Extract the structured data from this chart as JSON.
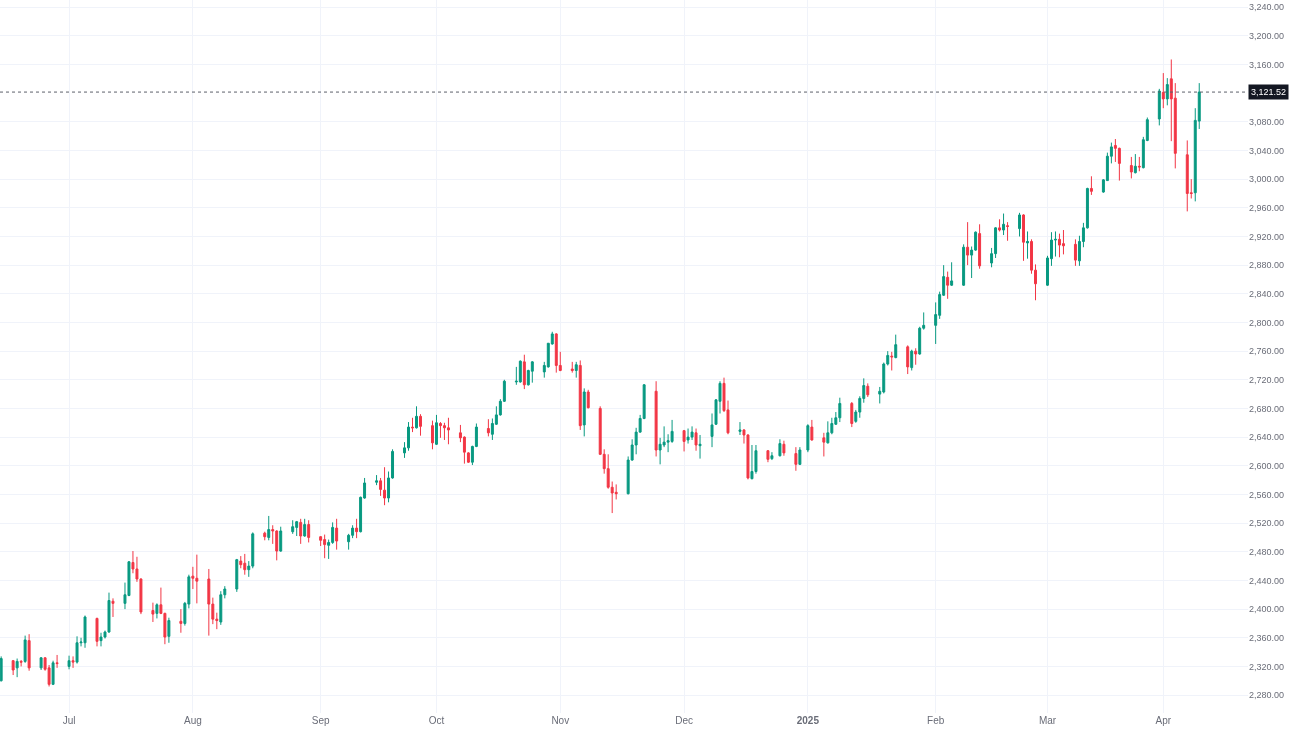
{
  "chart_data": {
    "type": "candlestick",
    "x": [
      "2024-06-14",
      "2024-06-17",
      "2024-06-18",
      "2024-06-19",
      "2024-06-20",
      "2024-06-21",
      "2024-06-24",
      "2024-06-25",
      "2024-06-26",
      "2024-06-27",
      "2024-06-28",
      "2024-07-01",
      "2024-07-02",
      "2024-07-03",
      "2024-07-04",
      "2024-07-05",
      "2024-07-08",
      "2024-07-09",
      "2024-07-10",
      "2024-07-11",
      "2024-07-12",
      "2024-07-15",
      "2024-07-16",
      "2024-07-17",
      "2024-07-18",
      "2024-07-19",
      "2024-07-22",
      "2024-07-23",
      "2024-07-24",
      "2024-07-25",
      "2024-07-26",
      "2024-07-29",
      "2024-07-30",
      "2024-07-31",
      "2024-08-01",
      "2024-08-02",
      "2024-08-05",
      "2024-08-06",
      "2024-08-07",
      "2024-08-08",
      "2024-08-09",
      "2024-08-12",
      "2024-08-13",
      "2024-08-14",
      "2024-08-15",
      "2024-08-16",
      "2024-08-19",
      "2024-08-20",
      "2024-08-21",
      "2024-08-22",
      "2024-08-23",
      "2024-08-26",
      "2024-08-27",
      "2024-08-28",
      "2024-08-29",
      "2024-08-30",
      "2024-09-02",
      "2024-09-03",
      "2024-09-04",
      "2024-09-05",
      "2024-09-06",
      "2024-09-09",
      "2024-09-10",
      "2024-09-11",
      "2024-09-12",
      "2024-09-13",
      "2024-09-16",
      "2024-09-17",
      "2024-09-18",
      "2024-09-19",
      "2024-09-20",
      "2024-09-23",
      "2024-09-24",
      "2024-09-25",
      "2024-09-26",
      "2024-09-27",
      "2024-09-30",
      "2024-10-01",
      "2024-10-02",
      "2024-10-03",
      "2024-10-04",
      "2024-10-07",
      "2024-10-08",
      "2024-10-09",
      "2024-10-10",
      "2024-10-11",
      "2024-10-14",
      "2024-10-15",
      "2024-10-16",
      "2024-10-17",
      "2024-10-18",
      "2024-10-21",
      "2024-10-22",
      "2024-10-23",
      "2024-10-24",
      "2024-10-25",
      "2024-10-28",
      "2024-10-29",
      "2024-10-30",
      "2024-10-31",
      "2024-11-01",
      "2024-11-04",
      "2024-11-05",
      "2024-11-06",
      "2024-11-07",
      "2024-11-08",
      "2024-11-11",
      "2024-11-12",
      "2024-11-13",
      "2024-11-14",
      "2024-11-15",
      "2024-11-18",
      "2024-11-19",
      "2024-11-20",
      "2024-11-21",
      "2024-11-22",
      "2024-11-25",
      "2024-11-26",
      "2024-11-27",
      "2024-11-28",
      "2024-11-29",
      "2024-12-02",
      "2024-12-03",
      "2024-12-04",
      "2024-12-05",
      "2024-12-06",
      "2024-12-09",
      "2024-12-10",
      "2024-12-11",
      "2024-12-12",
      "2024-12-13",
      "2024-12-16",
      "2024-12-17",
      "2024-12-18",
      "2024-12-19",
      "2024-12-20",
      "2024-12-23",
      "2024-12-24",
      "2024-12-26",
      "2024-12-27",
      "2024-12-30",
      "2024-12-31",
      "2025-01-02",
      "2025-01-03",
      "2025-01-06",
      "2025-01-07",
      "2025-01-08",
      "2025-01-09",
      "2025-01-10",
      "2025-01-13",
      "2025-01-14",
      "2025-01-15",
      "2025-01-16",
      "2025-01-17",
      "2025-01-20",
      "2025-01-21",
      "2025-01-22",
      "2025-01-23",
      "2025-01-24",
      "2025-01-27",
      "2025-01-28",
      "2025-01-29",
      "2025-01-30",
      "2025-01-31",
      "2025-02-03",
      "2025-02-04",
      "2025-02-05",
      "2025-02-06",
      "2025-02-07",
      "2025-02-10",
      "2025-02-11",
      "2025-02-12",
      "2025-02-13",
      "2025-02-14",
      "2025-02-17",
      "2025-02-18",
      "2025-02-19",
      "2025-02-20",
      "2025-02-21",
      "2025-02-24",
      "2025-02-25",
      "2025-02-26",
      "2025-02-27",
      "2025-02-28",
      "2025-03-03",
      "2025-03-04",
      "2025-03-05",
      "2025-03-06",
      "2025-03-07",
      "2025-03-10",
      "2025-03-11",
      "2025-03-12",
      "2025-03-13",
      "2025-03-14",
      "2025-03-17",
      "2025-03-18",
      "2025-03-19",
      "2025-03-20",
      "2025-03-21",
      "2025-03-24",
      "2025-03-25",
      "2025-03-26",
      "2025-03-27",
      "2025-03-28",
      "2025-03-31",
      "2025-04-01",
      "2025-04-02",
      "2025-04-03",
      "2025-04-04",
      "2025-04-07",
      "2025-04-08",
      "2025-04-09",
      "2025-04-10"
    ],
    "ohlc": [
      [
        2300,
        2334,
        2299,
        2331
      ],
      [
        2328,
        2329,
        2308,
        2315
      ],
      [
        2318,
        2331,
        2305,
        2327
      ],
      [
        2327,
        2329,
        2320,
        2326
      ],
      [
        2327,
        2363,
        2325,
        2357
      ],
      [
        2356,
        2365,
        2314,
        2318
      ],
      [
        2318,
        2333,
        2315,
        2332
      ],
      [
        2332,
        2333,
        2314,
        2316
      ],
      [
        2318,
        2322,
        2292,
        2295
      ],
      [
        2295,
        2328,
        2294,
        2325
      ],
      [
        2325,
        2336,
        2318,
        2324
      ],
      [
        2320,
        2335,
        2316,
        2328
      ],
      [
        2328,
        2334,
        2318,
        2326
      ],
      [
        2326,
        2362,
        2324,
        2353
      ],
      [
        2353,
        2360,
        2348,
        2354
      ],
      [
        2353,
        2391,
        2346,
        2389
      ],
      [
        2387,
        2388,
        2348,
        2355
      ],
      [
        2356,
        2367,
        2348,
        2361
      ],
      [
        2361,
        2370,
        2359,
        2368
      ],
      [
        2368,
        2423,
        2367,
        2412
      ],
      [
        2411,
        2415,
        2389,
        2408
      ],
      [
        2408,
        2437,
        2400,
        2420
      ],
      [
        2419,
        2467,
        2418,
        2466
      ],
      [
        2465,
        2481,
        2450,
        2456
      ],
      [
        2456,
        2473,
        2438,
        2442
      ],
      [
        2442,
        2443,
        2393,
        2396
      ],
      [
        2398,
        2409,
        2382,
        2393
      ],
      [
        2394,
        2408,
        2387,
        2406
      ],
      [
        2406,
        2430,
        2393,
        2394
      ],
      [
        2394,
        2395,
        2351,
        2361
      ],
      [
        2362,
        2388,
        2353,
        2384
      ],
      [
        2383,
        2400,
        2367,
        2380
      ],
      [
        2380,
        2410,
        2377,
        2408
      ],
      [
        2407,
        2448,
        2401,
        2445
      ],
      [
        2446,
        2459,
        2428,
        2443
      ],
      [
        2443,
        2476,
        2408,
        2439
      ],
      [
        2442,
        2456,
        2363,
        2407
      ],
      [
        2407,
        2416,
        2379,
        2386
      ],
      [
        2386,
        2395,
        2372,
        2384
      ],
      [
        2382,
        2425,
        2378,
        2420
      ],
      [
        2420,
        2432,
        2415,
        2428
      ],
      [
        2428,
        2470,
        2424,
        2469
      ],
      [
        2467,
        2474,
        2457,
        2462
      ],
      [
        2464,
        2477,
        2448,
        2455
      ],
      [
        2455,
        2467,
        2445,
        2460
      ],
      [
        2460,
        2507,
        2457,
        2505
      ],
      [
        2506,
        2508,
        2496,
        2501
      ],
      [
        2500,
        2530,
        2496,
        2511
      ],
      [
        2511,
        2517,
        2491,
        2509
      ],
      [
        2509,
        2510,
        2468,
        2481
      ],
      [
        2481,
        2515,
        2480,
        2509
      ],
      [
        2508,
        2524,
        2505,
        2515
      ],
      [
        2514,
        2523,
        2502,
        2522
      ],
      [
        2521,
        2526,
        2491,
        2502
      ],
      [
        2502,
        2526,
        2501,
        2518
      ],
      [
        2518,
        2524,
        2493,
        2500
      ],
      [
        2501,
        2502,
        2488,
        2496
      ],
      [
        2497,
        2504,
        2471,
        2490
      ],
      [
        2489,
        2497,
        2470,
        2493
      ],
      [
        2493,
        2521,
        2491,
        2514
      ],
      [
        2513,
        2526,
        2483,
        2495
      ],
      [
        2494,
        2505,
        2483,
        2503
      ],
      [
        2503,
        2517,
        2499,
        2513
      ],
      [
        2513,
        2526,
        2499,
        2508
      ],
      [
        2508,
        2557,
        2507,
        2556
      ],
      [
        2555,
        2583,
        2554,
        2576
      ],
      [
        2577,
        2587,
        2573,
        2579
      ],
      [
        2579,
        2583,
        2558,
        2567
      ],
      [
        2566,
        2598,
        2545,
        2555
      ],
      [
        2555,
        2592,
        2549,
        2583
      ],
      [
        2583,
        2623,
        2582,
        2620
      ],
      [
        2618,
        2633,
        2611,
        2625
      ],
      [
        2625,
        2661,
        2621,
        2654
      ],
      [
        2654,
        2667,
        2647,
        2653
      ],
      [
        2653,
        2683,
        2652,
        2669
      ],
      [
        2669,
        2672,
        2642,
        2655
      ],
      [
        2656,
        2663,
        2623,
        2632
      ],
      [
        2630,
        2671,
        2629,
        2660
      ],
      [
        2659,
        2661,
        2639,
        2656
      ],
      [
        2656,
        2660,
        2636,
        2653
      ],
      [
        2653,
        2667,
        2630,
        2650
      ],
      [
        2646,
        2657,
        2633,
        2639
      ],
      [
        2640,
        2641,
        2603,
        2619
      ],
      [
        2618,
        2619,
        2604,
        2605
      ],
      [
        2605,
        2628,
        2601,
        2627
      ],
      [
        2627,
        2659,
        2626,
        2654
      ],
      [
        2652,
        2665,
        2641,
        2646
      ],
      [
        2644,
        2666,
        2636,
        2659
      ],
      [
        2658,
        2683,
        2657,
        2671
      ],
      [
        2671,
        2693,
        2670,
        2690
      ],
      [
        2690,
        2720,
        2689,
        2718
      ],
      [
        2717,
        2738,
        2713,
        2718
      ],
      [
        2717,
        2747,
        2716,
        2746
      ],
      [
        2745,
        2755,
        2707,
        2713
      ],
      [
        2713,
        2734,
        2712,
        2733
      ],
      [
        2732,
        2746,
        2716,
        2745
      ],
      [
        2731,
        2745,
        2723,
        2740
      ],
      [
        2738,
        2771,
        2737,
        2771
      ],
      [
        2770,
        2787,
        2769,
        2784
      ],
      [
        2784,
        2785,
        2730,
        2740
      ],
      [
        2740,
        2759,
        2732,
        2733
      ],
      [
        2735,
        2745,
        2730,
        2733
      ],
      [
        2733,
        2745,
        2723,
        2741
      ],
      [
        2740,
        2747,
        2650,
        2656
      ],
      [
        2657,
        2708,
        2641,
        2703
      ],
      [
        2703,
        2706,
        2680,
        2681
      ],
      [
        2680,
        2683,
        2615,
        2616
      ],
      [
        2616,
        2623,
        2589,
        2596
      ],
      [
        2596,
        2616,
        2568,
        2570
      ],
      [
        2570,
        2578,
        2534,
        2562
      ],
      [
        2563,
        2574,
        2553,
        2561
      ],
      [
        2561,
        2613,
        2560,
        2608
      ],
      [
        2608,
        2637,
        2607,
        2629
      ],
      [
        2629,
        2653,
        2616,
        2647
      ],
      [
        2647,
        2671,
        2646,
        2666
      ],
      [
        2666,
        2714,
        2665,
        2713
      ],
      [
        2704,
        2718,
        2613,
        2622
      ],
      [
        2622,
        2639,
        2602,
        2630
      ],
      [
        2629,
        2655,
        2626,
        2633
      ],
      [
        2633,
        2644,
        2619,
        2635
      ],
      [
        2634,
        2664,
        2632,
        2648
      ],
      [
        2649,
        2650,
        2620,
        2634
      ],
      [
        2636,
        2652,
        2631,
        2640
      ],
      [
        2640,
        2655,
        2636,
        2647
      ],
      [
        2646,
        2652,
        2621,
        2629
      ],
      [
        2628,
        2643,
        2610,
        2630
      ],
      [
        2641,
        2673,
        2626,
        2657
      ],
      [
        2658,
        2693,
        2657,
        2692
      ],
      [
        2690,
        2718,
        2673,
        2715
      ],
      [
        2715,
        2723,
        2675,
        2677
      ],
      [
        2678,
        2691,
        2644,
        2646
      ],
      [
        2648,
        2661,
        2643,
        2650
      ],
      [
        2650,
        2651,
        2631,
        2643
      ],
      [
        2643,
        2644,
        2581,
        2583
      ],
      [
        2582,
        2629,
        2581,
        2592
      ],
      [
        2592,
        2629,
        2589,
        2621
      ],
      [
        2621,
        2622,
        2605,
        2609
      ],
      [
        2610,
        2619,
        2608,
        2614
      ],
      [
        2614,
        2637,
        2613,
        2631
      ],
      [
        2630,
        2635,
        2614,
        2618
      ],
      [
        2617,
        2626,
        2593,
        2602
      ],
      [
        2602,
        2626,
        2601,
        2622
      ],
      [
        2622,
        2658,
        2619,
        2656
      ],
      [
        2654,
        2664,
        2635,
        2636
      ],
      [
        2639,
        2646,
        2613,
        2633
      ],
      [
        2632,
        2662,
        2631,
        2646
      ],
      [
        2646,
        2667,
        2644,
        2659
      ],
      [
        2658,
        2675,
        2657,
        2667
      ],
      [
        2667,
        2695,
        2661,
        2687
      ],
      [
        2687,
        2689,
        2654,
        2659
      ],
      [
        2662,
        2678,
        2660,
        2675
      ],
      [
        2675,
        2697,
        2667,
        2694
      ],
      [
        2694,
        2722,
        2688,
        2712
      ],
      [
        2711,
        2715,
        2696,
        2699
      ],
      [
        2700,
        2710,
        2687,
        2704
      ],
      [
        2703,
        2744,
        2701,
        2742
      ],
      [
        2742,
        2760,
        2740,
        2754
      ],
      [
        2753,
        2759,
        2733,
        2752
      ],
      [
        2751,
        2783,
        2750,
        2769
      ],
      [
        2766,
        2768,
        2728,
        2738
      ],
      [
        2737,
        2762,
        2733,
        2760
      ],
      [
        2760,
        2764,
        2741,
        2756
      ],
      [
        2756,
        2794,
        2755,
        2792
      ],
      [
        2792,
        2814,
        2790,
        2796
      ],
      [
        2796,
        2828,
        2770,
        2811
      ],
      [
        2810,
        2843,
        2805,
        2839
      ],
      [
        2838,
        2880,
        2837,
        2864
      ],
      [
        2863,
        2871,
        2833,
        2852
      ],
      [
        2852,
        2884,
        2851,
        2858
      ],
      [
        2852,
        2909,
        2851,
        2905
      ],
      [
        2905,
        2940,
        2880,
        2894
      ],
      [
        2894,
        2906,
        2862,
        2901
      ],
      [
        2901,
        2927,
        2900,
        2926
      ],
      [
        2924,
        2937,
        2875,
        2879
      ],
      [
        2883,
        2904,
        2877,
        2896
      ],
      [
        2896,
        2933,
        2890,
        2932
      ],
      [
        2932,
        2944,
        2927,
        2929
      ],
      [
        2929,
        2952,
        2922,
        2937
      ],
      [
        2935,
        2940,
        2914,
        2934
      ],
      [
        2931,
        2953,
        2920,
        2950
      ],
      [
        2950,
        2951,
        2886,
        2912
      ],
      [
        2911,
        2927,
        2889,
        2913
      ],
      [
        2913,
        2916,
        2868,
        2873
      ],
      [
        2873,
        2881,
        2831,
        2854
      ],
      [
        2852,
        2893,
        2851,
        2890
      ],
      [
        2889,
        2926,
        2879,
        2915
      ],
      [
        2915,
        2927,
        2892,
        2916
      ],
      [
        2916,
        2924,
        2891,
        2908
      ],
      [
        2910,
        2929,
        2895,
        2907
      ],
      [
        2909,
        2916,
        2879,
        2887
      ],
      [
        2886,
        2921,
        2879,
        2913
      ],
      [
        2913,
        2939,
        2905,
        2932
      ],
      [
        2932,
        2988,
        2931,
        2987
      ],
      [
        2987,
        3004,
        2978,
        2983
      ],
      [
        2982,
        3000,
        2981,
        2999
      ],
      [
        2998,
        3037,
        2998,
        3032
      ],
      [
        3032,
        3051,
        3022,
        3045
      ],
      [
        3047,
        3056,
        3024,
        3043
      ],
      [
        3043,
        3044,
        2998,
        3022
      ],
      [
        3019,
        3031,
        3001,
        3010
      ],
      [
        3009,
        3035,
        3008,
        3018
      ],
      [
        3018,
        3031,
        3011,
        3017
      ],
      [
        3016,
        3059,
        3015,
        3055
      ],
      [
        3054,
        3086,
        3053,
        3083
      ],
      [
        3084,
        3126,
        3075,
        3123
      ],
      [
        3121,
        3148,
        3099,
        3112
      ],
      [
        3112,
        3141,
        3103,
        3132
      ],
      [
        3140,
        3167,
        3053,
        3112
      ],
      [
        3113,
        3134,
        3015,
        3036
      ],
      [
        3034,
        3054,
        2955,
        2980
      ],
      [
        2981,
        3000,
        2973,
        2980
      ],
      [
        2981,
        3099,
        2969,
        3082
      ],
      [
        3081,
        3134,
        3070,
        3121.52
      ]
    ],
    "colors": [
      "#089981",
      "#f23645",
      "#089981",
      "#f23645",
      "#089981",
      "#f23645",
      "#089981",
      "#f23645",
      "#f23645",
      "#089981",
      "#f23645",
      "#089981",
      "#f23645",
      "#089981",
      "#089981",
      "#089981",
      "#f23645",
      "#089981",
      "#089981",
      "#089981",
      "#f23645",
      "#089981",
      "#089981",
      "#f23645",
      "#f23645",
      "#f23645",
      "#f23645",
      "#089981",
      "#f23645",
      "#f23645",
      "#089981",
      "#f23645",
      "#089981",
      "#089981",
      "#f23645",
      "#f23645",
      "#f23645",
      "#f23645",
      "#f23645",
      "#089981",
      "#089981",
      "#089981",
      "#f23645",
      "#f23645",
      "#089981",
      "#089981",
      "#f23645",
      "#089981",
      "#f23645",
      "#f23645",
      "#089981",
      "#089981",
      "#089981",
      "#f23645",
      "#089981",
      "#f23645",
      "#f23645",
      "#f23645",
      "#089981",
      "#089981",
      "#f23645",
      "#089981",
      "#089981",
      "#f23645",
      "#089981",
      "#089981",
      "#089981",
      "#f23645",
      "#f23645",
      "#089981",
      "#089981",
      "#089981",
      "#089981",
      "#f23645",
      "#089981",
      "#f23645",
      "#f23645",
      "#089981",
      "#f23645",
      "#f23645",
      "#f23645",
      "#f23645",
      "#f23645",
      "#f23645",
      "#089981",
      "#089981",
      "#f23645",
      "#089981",
      "#089981",
      "#089981",
      "#089981",
      "#089981",
      "#089981",
      "#f23645",
      "#089981",
      "#089981",
      "#089981",
      "#089981",
      "#089981",
      "#f23645",
      "#f23645",
      "#f23645",
      "#089981",
      "#f23645",
      "#089981",
      "#f23645",
      "#f23645",
      "#f23645",
      "#f23645",
      "#f23645",
      "#f23645",
      "#089981",
      "#089981",
      "#089981",
      "#089981",
      "#089981",
      "#f23645",
      "#089981",
      "#089981",
      "#089981",
      "#089981",
      "#f23645",
      "#089981",
      "#089981",
      "#f23645",
      "#089981",
      "#089981",
      "#089981",
      "#089981",
      "#f23645",
      "#f23645",
      "#089981",
      "#f23645",
      "#f23645",
      "#089981",
      "#089981",
      "#f23645",
      "#089981",
      "#089981",
      "#f23645",
      "#f23645",
      "#089981",
      "#089981",
      "#f23645",
      "#f23645",
      "#089981",
      "#089981",
      "#089981",
      "#089981",
      "#f23645",
      "#089981",
      "#089981",
      "#089981",
      "#f23645",
      "#089981",
      "#089981",
      "#089981",
      "#f23645",
      "#089981",
      "#f23645",
      "#089981",
      "#f23645",
      "#089981",
      "#089981",
      "#089981",
      "#089981",
      "#089981",
      "#f23645",
      "#089981",
      "#089981",
      "#f23645",
      "#089981",
      "#089981",
      "#f23645",
      "#089981",
      "#089981",
      "#f23645",
      "#089981",
      "#f23645",
      "#089981",
      "#f23645",
      "#089981",
      "#f23645",
      "#f23645",
      "#089981",
      "#089981",
      "#089981",
      "#f23645",
      "#f23645",
      "#f23645",
      "#089981",
      "#089981",
      "#089981",
      "#f23645",
      "#089981",
      "#089981",
      "#089981",
      "#f23645",
      "#f23645",
      "#f23645",
      "#089981",
      "#f23645",
      "#089981",
      "#089981",
      "#089981",
      "#f23645",
      "#089981",
      "#f23645",
      "#f23645",
      "#f23645",
      "#f23645",
      "#089981",
      "#089981"
    ],
    "xlim": [
      "2024-06-13T17:00",
      "2025-04-22T05:00"
    ],
    "xticks": [
      {
        "value": "2024-07-01",
        "label": "Jul"
      },
      {
        "value": "2024-08-01",
        "label": "Aug"
      },
      {
        "value": "2024-09-02",
        "label": "Sep"
      },
      {
        "value": "2024-10-01",
        "label": "Oct"
      },
      {
        "value": "2024-11-01",
        "label": "Nov"
      },
      {
        "value": "2024-12-02",
        "label": "Dec"
      },
      {
        "value": "2025-01-02",
        "label": "2025"
      },
      {
        "value": "2025-02-03",
        "label": "Feb"
      },
      {
        "value": "2025-03-03",
        "label": "Mar"
      },
      {
        "value": "2025-04-01",
        "label": "Apr"
      }
    ],
    "ylim": [
      2255,
      3250
    ],
    "yticks": [
      {
        "value": 2280,
        "label": "2,280.00"
      },
      {
        "value": 2320,
        "label": "2,320.00"
      },
      {
        "value": 2360,
        "label": "2,360.00"
      },
      {
        "value": 2400,
        "label": "2,400.00"
      },
      {
        "value": 2440,
        "label": "2,440.00"
      },
      {
        "value": 2480,
        "label": "2,480.00"
      },
      {
        "value": 2520,
        "label": "2,520.00"
      },
      {
        "value": 2560,
        "label": "2,560.00"
      },
      {
        "value": 2600,
        "label": "2,600.00"
      },
      {
        "value": 2640,
        "label": "2,640.00"
      },
      {
        "value": 2680,
        "label": "2,680.00"
      },
      {
        "value": 2720,
        "label": "2,720.00"
      },
      {
        "value": 2760,
        "label": "2,760.00"
      },
      {
        "value": 2800,
        "label": "2,800.00"
      },
      {
        "value": 2840,
        "label": "2,840.00"
      },
      {
        "value": 2880,
        "label": "2,880.00"
      },
      {
        "value": 2920,
        "label": "2,920.00"
      },
      {
        "value": 2960,
        "label": "2,960.00"
      },
      {
        "value": 3000,
        "label": "3,000.00"
      },
      {
        "value": 3040,
        "label": "3,040.00"
      },
      {
        "value": 3080,
        "label": "3,080.00"
      },
      {
        "value": 3160,
        "label": "3,160.00"
      },
      {
        "value": 3200,
        "label": "3,200.00"
      },
      {
        "value": 3240,
        "label": "3,240.00"
      }
    ],
    "ref_lines": [
      {
        "axis": "y",
        "value": 3121.52,
        "label": "3,121.52",
        "color": "#5d606b",
        "line_style": "dotted"
      }
    ],
    "grid": true
  }
}
